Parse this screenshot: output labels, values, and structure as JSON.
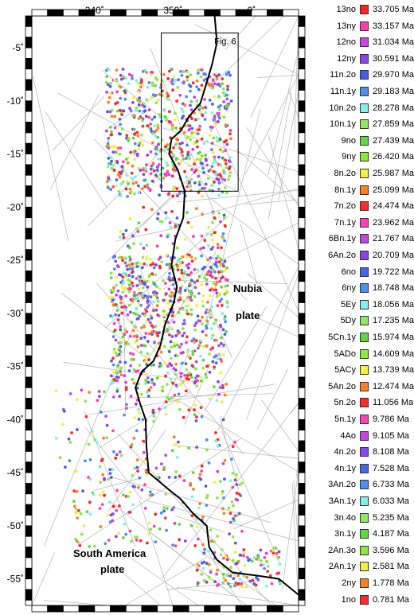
{
  "map": {
    "lon_ticks": [
      {
        "lon": 340,
        "label": "340˚"
      },
      {
        "lon": 350,
        "label": "350˚"
      },
      {
        "lon": 360,
        "label": "0˚"
      }
    ],
    "lat_ticks": [
      {
        "lat": -5,
        "label": "-5˚"
      },
      {
        "lat": -10,
        "label": "-10˚"
      },
      {
        "lat": -15,
        "label": "-15˚"
      },
      {
        "lat": -20,
        "label": "-20˚"
      },
      {
        "lat": -25,
        "label": "-25˚"
      },
      {
        "lat": -30,
        "label": "-30˚"
      },
      {
        "lat": -35,
        "label": "-35˚"
      },
      {
        "lat": -40,
        "label": "-40˚"
      },
      {
        "lat": -45,
        "label": "-45˚"
      },
      {
        "lat": -50,
        "label": "-50˚"
      },
      {
        "lat": -55,
        "label": "-55˚"
      }
    ],
    "lon_range": [
      332,
      366
    ],
    "lat_range": [
      -57.5,
      -2
    ],
    "labels": {
      "nubia_line1": "Nubia",
      "nubia_line2": "plate",
      "south_america_line1": "South America",
      "south_america_line2": "plate",
      "inset": "Fig. 6"
    },
    "colors": {
      "ridge": "#000000",
      "tracks": "#b4b4b4",
      "frame": "#000000"
    }
  },
  "legend": [
    {
      "chron": "13no",
      "age": "33.705 Ma",
      "color": "#ff2020"
    },
    {
      "chron": "13ny",
      "age": "33.157 Ma",
      "color": "#ff3fb0"
    },
    {
      "chron": "12no",
      "age": "31.034 Ma",
      "color": "#cc44e6"
    },
    {
      "chron": "12ny",
      "age": "30.591 Ma",
      "color": "#8a44ee"
    },
    {
      "chron": "11n.2o",
      "age": "29.970 Ma",
      "color": "#4060e8"
    },
    {
      "chron": "11n.1y",
      "age": "29.183 Ma",
      "color": "#4a8ef0"
    },
    {
      "chron": "10n.2o",
      "age": "28.278 Ma",
      "color": "#80f0e8"
    },
    {
      "chron": "10n.1y",
      "age": "27.859 Ma",
      "color": "#8ee860"
    },
    {
      "chron": "9no",
      "age": "27.439 Ma",
      "color": "#60d840"
    },
    {
      "chron": "9ny",
      "age": "26.420 Ma",
      "color": "#88ea3c"
    },
    {
      "chron": "8n.2o",
      "age": "25.987 Ma",
      "color": "#f4f040"
    },
    {
      "chron": "8n.1y",
      "age": "25.099 Ma",
      "color": "#ff8020"
    },
    {
      "chron": "7n.2o",
      "age": "24.474 Ma",
      "color": "#ff2a2a"
    },
    {
      "chron": "7n.1y",
      "age": "23.962 Ma",
      "color": "#ff40b8"
    },
    {
      "chron": "6Bn.1y",
      "age": "21.767 Ma",
      "color": "#c844e0"
    },
    {
      "chron": "6An.2o",
      "age": "20.709 Ma",
      "color": "#8844ee"
    },
    {
      "chron": "6no",
      "age": "19.722 Ma",
      "color": "#4466e8"
    },
    {
      "chron": "6ny",
      "age": "18.748 Ma",
      "color": "#4a90f0"
    },
    {
      "chron": "5Ey",
      "age": "18.056 Ma",
      "color": "#80f0e8"
    },
    {
      "chron": "5Dy",
      "age": "17.235 Ma",
      "color": "#8ee860"
    },
    {
      "chron": "5Cn.1y",
      "age": "15.974 Ma",
      "color": "#60d840"
    },
    {
      "chron": "5ADo",
      "age": "14.609 Ma",
      "color": "#88ea3c"
    },
    {
      "chron": "5ACy",
      "age": "13.739 Ma",
      "color": "#f4f040"
    },
    {
      "chron": "5An.2o",
      "age": "12.474 Ma",
      "color": "#ff8020"
    },
    {
      "chron": "5n.2o",
      "age": "11.056 Ma",
      "color": "#ff2a2a"
    },
    {
      "chron": "5n.1y",
      "age": "9.786 Ma",
      "color": "#ff40b8"
    },
    {
      "chron": "4Ao",
      "age": "9.105 Ma",
      "color": "#c844e0"
    },
    {
      "chron": "4n.2o",
      "age": "8.108 Ma",
      "color": "#8844ee"
    },
    {
      "chron": "4n.1y",
      "age": "7.528 Ma",
      "color": "#4466e8"
    },
    {
      "chron": "3An.2o",
      "age": "6.733 Ma",
      "color": "#4a90f0"
    },
    {
      "chron": "3An.1y",
      "age": "6.033 Ma",
      "color": "#80f0e8"
    },
    {
      "chron": "3n.4o",
      "age": "5.235 Ma",
      "color": "#8ee860"
    },
    {
      "chron": "3n.1y",
      "age": "4.187 Ma",
      "color": "#60d840"
    },
    {
      "chron": "2An.3o",
      "age": "3.596 Ma",
      "color": "#88ea3c"
    },
    {
      "chron": "2An.1y",
      "age": "2.581 Ma",
      "color": "#f4f040"
    },
    {
      "chron": "2ny",
      "age": "1.778 Ma",
      "color": "#ff8020"
    },
    {
      "chron": "1no",
      "age": "0.781 Ma",
      "color": "#ff2a2a"
    }
  ]
}
